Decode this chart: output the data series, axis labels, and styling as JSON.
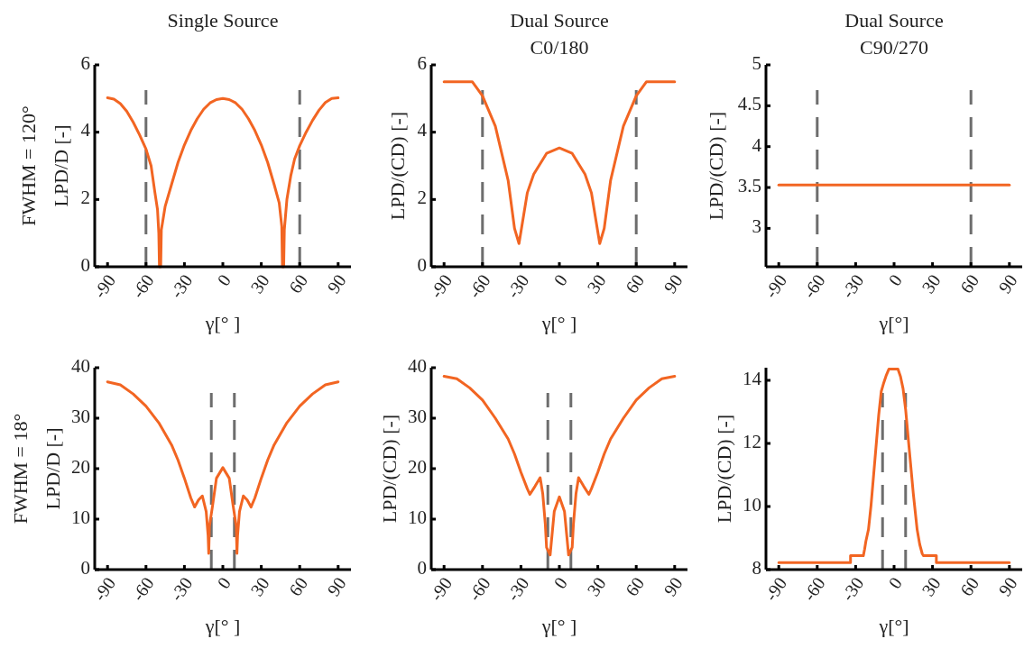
{
  "chart_data": [
    {
      "type": "line",
      "title": "Single Source",
      "xlabel": "γ[° ]",
      "ylabel": "FWHM = 120°\nLPD/D [-]",
      "xlim": [
        -100,
        100
      ],
      "ylim": [
        0,
        6
      ],
      "xticks": [
        -90,
        -60,
        -30,
        0,
        30,
        60,
        90
      ],
      "yticks": [
        0,
        2,
        4,
        6
      ],
      "series": [
        {
          "color": "#f26522",
          "x": [
            -90,
            -85,
            -80,
            -75,
            -70,
            -65,
            -60,
            -56,
            -53,
            -51,
            -50,
            -49.5,
            -48.5,
            -48,
            -45,
            -40,
            -35,
            -30,
            -25,
            -20,
            -15,
            -10,
            -5,
            0,
            5,
            10,
            15,
            20,
            25,
            30,
            35,
            40,
            44,
            46,
            46.5,
            47.5,
            48,
            50,
            53,
            56,
            60,
            65,
            70,
            75,
            80,
            85,
            90
          ],
          "values": [
            5.02,
            4.98,
            4.85,
            4.62,
            4.3,
            3.92,
            3.5,
            3.0,
            2.2,
            1.7,
            1.0,
            0,
            0,
            1.1,
            1.8,
            2.45,
            3.1,
            3.62,
            4.05,
            4.4,
            4.68,
            4.87,
            4.97,
            5.0,
            4.97,
            4.87,
            4.68,
            4.4,
            4.05,
            3.62,
            3.1,
            2.45,
            1.9,
            1.2,
            0,
            0,
            1.1,
            2.0,
            2.7,
            3.2,
            3.6,
            4.0,
            4.35,
            4.65,
            4.88,
            5.0,
            5.02
          ]
        }
      ],
      "ref_lines": [
        {
          "axis": "x",
          "value": -60,
          "color": "#6d6d6d",
          "line_style": "dashed"
        },
        {
          "axis": "x",
          "value": 60,
          "color": "#6d6d6d",
          "line_style": "dashed"
        }
      ]
    },
    {
      "type": "line",
      "title": "Dual Source\nC0/180",
      "xlabel": "γ[° ]",
      "ylabel": "LPD/(CD) [-]",
      "xlim": [
        -100,
        100
      ],
      "ylim": [
        0,
        6
      ],
      "xticks": [
        -90,
        -60,
        -30,
        0,
        30,
        60,
        90
      ],
      "yticks": [
        0,
        2,
        4,
        6
      ],
      "series": [
        {
          "color": "#f26522",
          "x": [
            -90,
            -80,
            -68,
            -60,
            -50,
            -40,
            -35,
            -31.5,
            -25,
            -20,
            -10,
            0,
            10,
            20,
            25,
            31.5,
            35,
            40,
            50,
            60,
            68,
            80,
            90
          ],
          "values": [
            5.5,
            5.5,
            5.5,
            5.08,
            4.18,
            2.57,
            1.14,
            0.69,
            2.2,
            2.75,
            3.37,
            3.53,
            3.37,
            2.75,
            2.2,
            0.69,
            1.14,
            2.57,
            4.18,
            5.08,
            5.5,
            5.5,
            5.5
          ]
        }
      ],
      "ref_lines": [
        {
          "axis": "x",
          "value": -60,
          "color": "#6d6d6d",
          "line_style": "dashed"
        },
        {
          "axis": "x",
          "value": 60,
          "color": "#6d6d6d",
          "line_style": "dashed"
        }
      ]
    },
    {
      "type": "line",
      "title": "Dual Source\nC90/270",
      "xlabel": "γ[°]",
      "ylabel": "LPD/(CD) [-]",
      "xlim": [
        -100,
        100
      ],
      "ylim": [
        2.53,
        5
      ],
      "xticks": [
        -90,
        -60,
        -30,
        0,
        30,
        60,
        90
      ],
      "yticks": [
        3,
        3.5,
        4,
        4.5,
        5
      ],
      "series": [
        {
          "color": "#f26522",
          "x": [
            -90,
            -60,
            -30,
            0,
            30,
            60,
            90
          ],
          "values": [
            3.53,
            3.53,
            3.53,
            3.53,
            3.53,
            3.53,
            3.53
          ]
        }
      ],
      "ref_lines": [
        {
          "axis": "x",
          "value": -60,
          "color": "#6d6d6d",
          "line_style": "dashed"
        },
        {
          "axis": "x",
          "value": 60,
          "color": "#6d6d6d",
          "line_style": "dashed"
        }
      ]
    },
    {
      "type": "line",
      "xlabel": "γ[° ]",
      "ylabel": "FWHM = 18°\nLPD/D [-]",
      "xlim": [
        -100,
        100
      ],
      "ylim": [
        0,
        40
      ],
      "xticks": [
        -90,
        -60,
        -30,
        0,
        30,
        60,
        90
      ],
      "yticks": [
        0,
        10,
        20,
        30,
        40
      ],
      "series": [
        {
          "color": "#f26522",
          "x": [
            -90,
            -80,
            -70,
            -60,
            -50,
            -40,
            -35,
            -30,
            -25,
            -22,
            -19,
            -16,
            -13,
            -11.5,
            -11,
            -10.5,
            -8,
            -5,
            0,
            5,
            8,
            10.5,
            11,
            11.5,
            13,
            16,
            19,
            22,
            25,
            30,
            35,
            40,
            50,
            60,
            70,
            80,
            90
          ],
          "values": [
            37.2,
            36.6,
            34.8,
            32.4,
            29.1,
            24.7,
            21.7,
            18.1,
            14.2,
            12.4,
            13.8,
            14.6,
            11.5,
            6.7,
            3.2,
            8.5,
            12.7,
            18.1,
            20.2,
            18.1,
            12.7,
            8.5,
            3.2,
            6.7,
            11.5,
            14.6,
            13.8,
            12.4,
            14.2,
            18.1,
            21.7,
            24.7,
            29.1,
            32.4,
            34.8,
            36.6,
            37.2
          ]
        }
      ],
      "ref_lines": [
        {
          "axis": "x",
          "value": -9,
          "color": "#6d6d6d",
          "line_style": "dashed"
        },
        {
          "axis": "x",
          "value": 9,
          "color": "#6d6d6d",
          "line_style": "dashed"
        }
      ]
    },
    {
      "type": "line",
      "xlabel": "γ[° ]",
      "ylabel": "LPD/(CD) [-]",
      "xlim": [
        -100,
        100
      ],
      "ylim": [
        0,
        40
      ],
      "xticks": [
        -90,
        -60,
        -30,
        0,
        30,
        60,
        90
      ],
      "yticks": [
        0,
        10,
        20,
        30,
        40
      ],
      "series": [
        {
          "color": "#f26522",
          "x": [
            -90,
            -80,
            -70,
            -60,
            -50,
            -40,
            -35,
            -30,
            -25,
            -23,
            -19,
            -15,
            -13,
            -11,
            -10,
            -7.2,
            -4,
            0,
            4,
            7.2,
            10,
            11,
            13,
            15,
            19,
            23,
            25,
            30,
            35,
            40,
            50,
            60,
            70,
            80,
            90
          ],
          "values": [
            38.3,
            37.8,
            36,
            33.6,
            30,
            25.9,
            22.9,
            19.3,
            16,
            14.9,
            16.5,
            18.2,
            15.1,
            9.1,
            4.4,
            2.9,
            11.5,
            14.4,
            11.5,
            2.9,
            4.4,
            9.1,
            15.1,
            18.2,
            16.5,
            14.9,
            16,
            19.3,
            22.9,
            25.9,
            30,
            33.6,
            36,
            37.8,
            38.3
          ]
        }
      ],
      "ref_lines": [
        {
          "axis": "x",
          "value": -9,
          "color": "#6d6d6d",
          "line_style": "dashed"
        },
        {
          "axis": "x",
          "value": 9,
          "color": "#6d6d6d",
          "line_style": "dashed"
        }
      ]
    },
    {
      "type": "line",
      "xlabel": "γ[°]",
      "ylabel": "LPD/(CD) [-]",
      "xlim": [
        -100,
        100
      ],
      "ylim": [
        8,
        14.4
      ],
      "xticks": [
        -90,
        -60,
        -30,
        0,
        30,
        60,
        90
      ],
      "yticks": [
        8,
        10,
        12,
        14
      ],
      "series": [
        {
          "color": "#f26522",
          "x": [
            -90,
            -34,
            -34,
            -24,
            -23,
            -22,
            -20,
            -18,
            -15,
            -12,
            -10,
            -8,
            -6,
            -4,
            0,
            3,
            5,
            7,
            9,
            12,
            15,
            18,
            20,
            22,
            23,
            33,
            33,
            90
          ],
          "values": [
            8.22,
            8.22,
            8.44,
            8.44,
            8.65,
            8.9,
            9.27,
            10.03,
            11.46,
            12.9,
            13.65,
            13.93,
            14.17,
            14.36,
            14.36,
            14.36,
            14.12,
            13.74,
            13.08,
            11.74,
            10.41,
            9.27,
            8.8,
            8.5,
            8.44,
            8.44,
            8.22,
            8.22
          ]
        }
      ],
      "ref_lines": [
        {
          "axis": "x",
          "value": -9,
          "color": "#6d6d6d",
          "line_style": "dashed"
        },
        {
          "axis": "x",
          "value": 9,
          "color": "#6d6d6d",
          "line_style": "dashed"
        }
      ]
    }
  ]
}
